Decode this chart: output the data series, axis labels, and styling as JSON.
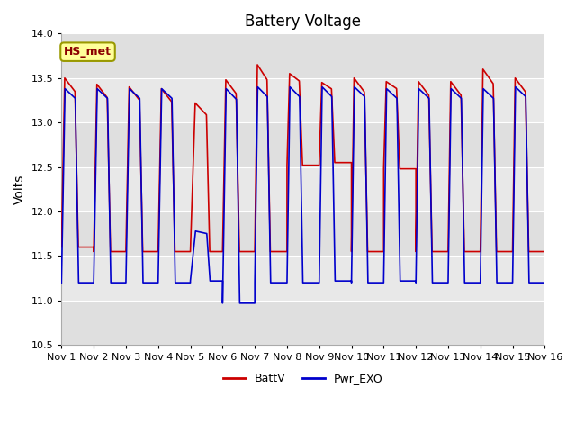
{
  "title": "Battery Voltage",
  "ylabel": "Volts",
  "xlim_start": 0,
  "xlim_end": 15,
  "ylim": [
    10.5,
    14.0
  ],
  "yticks": [
    10.5,
    11.0,
    11.5,
    12.0,
    12.5,
    13.0,
    13.5,
    14.0
  ],
  "xtick_labels": [
    "Nov 1",
    "Nov 2",
    "Nov 3",
    "Nov 4",
    "Nov 5",
    "Nov 6",
    "Nov 7",
    "Nov 8",
    "Nov 9",
    "Nov 10",
    "Nov 11",
    "Nov 12",
    "Nov 13",
    "Nov 14",
    "Nov 15",
    "Nov 16"
  ],
  "xtick_positions": [
    0,
    1,
    2,
    3,
    4,
    5,
    6,
    7,
    8,
    9,
    10,
    11,
    12,
    13,
    14,
    15
  ],
  "label_red": "BattV",
  "label_blue": "Pwr_EXO",
  "color_red": "#cc0000",
  "color_blue": "#0000cc",
  "line_width": 1.2,
  "annotation_text": "HS_met",
  "plot_bg": "#e8e8e8",
  "title_fontsize": 12,
  "axis_fontsize": 10,
  "tick_fontsize": 8,
  "fig_width": 6.4,
  "fig_height": 4.8
}
